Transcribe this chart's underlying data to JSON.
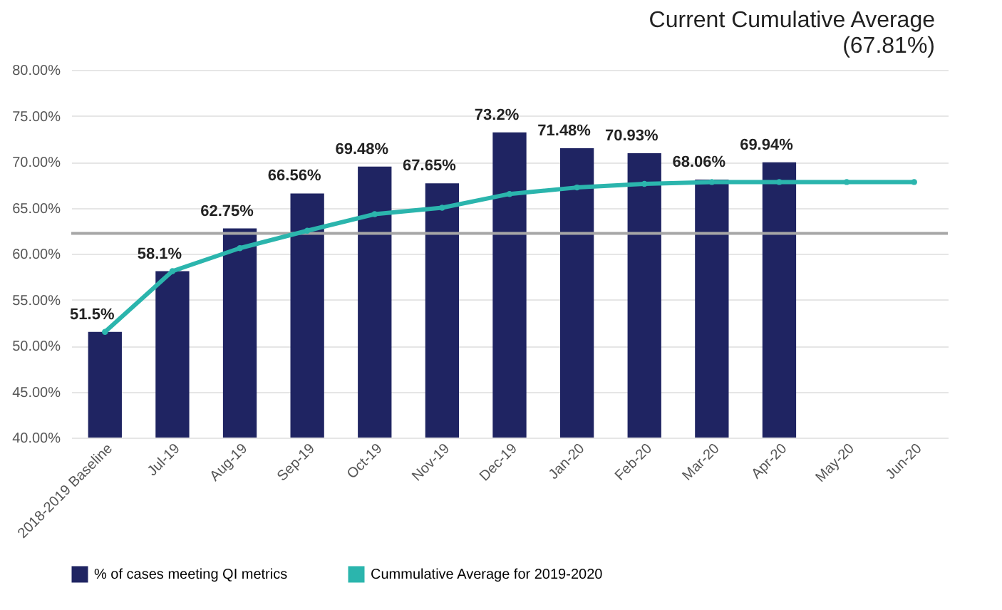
{
  "chart_data": {
    "type": "bar",
    "title": "Current Cumulative Average",
    "subtitle": "(67.81%)",
    "categories": [
      "2018-2019 Baseline",
      "Jul-19",
      "Aug-19",
      "Sep-19",
      "Oct-19",
      "Nov-19",
      "Dec-19",
      "Jan-20",
      "Feb-20",
      "Mar-20",
      "Apr-20",
      "May-20",
      "Jun-20"
    ],
    "series": [
      {
        "name": "% of cases meeting QI metrics",
        "color": "#1f2462",
        "values": [
          51.5,
          58.1,
          62.75,
          66.56,
          69.48,
          67.65,
          73.2,
          71.48,
          70.93,
          68.06,
          69.94,
          null,
          null
        ],
        "value_labels": [
          "51.5%",
          "58.1%",
          "62.75%",
          "66.56%",
          "69.48%",
          "67.65%",
          "73.2%",
          "71.48%",
          "70.93%",
          "68.06%",
          "69.94%",
          null,
          null
        ]
      },
      {
        "name": "Cummulative Average for 2019-2020",
        "type": "line",
        "color": "#2bb5ad",
        "marker": "circle",
        "values": [
          51.5,
          58.1,
          60.6,
          62.5,
          64.3,
          65.0,
          66.5,
          67.2,
          67.6,
          67.8,
          67.8,
          67.8,
          67.8
        ]
      }
    ],
    "ylim": [
      40,
      80
    ],
    "yticks": [
      {
        "value": 40,
        "label": "40.00%"
      },
      {
        "value": 45,
        "label": "45.00%"
      },
      {
        "value": 50,
        "label": "50.00%"
      },
      {
        "value": 55,
        "label": "55.00%"
      },
      {
        "value": 60,
        "label": "60.00%"
      },
      {
        "value": 65,
        "label": "65.00%"
      },
      {
        "value": 70,
        "label": "70.00%"
      },
      {
        "value": 75,
        "label": "75.00%"
      },
      {
        "value": 80,
        "label": "80.00%"
      }
    ],
    "ref_lines": [
      {
        "axis": "y",
        "value": 62.2,
        "color": "#a6a6a6"
      }
    ],
    "grid": "y",
    "legend": "bottom"
  }
}
